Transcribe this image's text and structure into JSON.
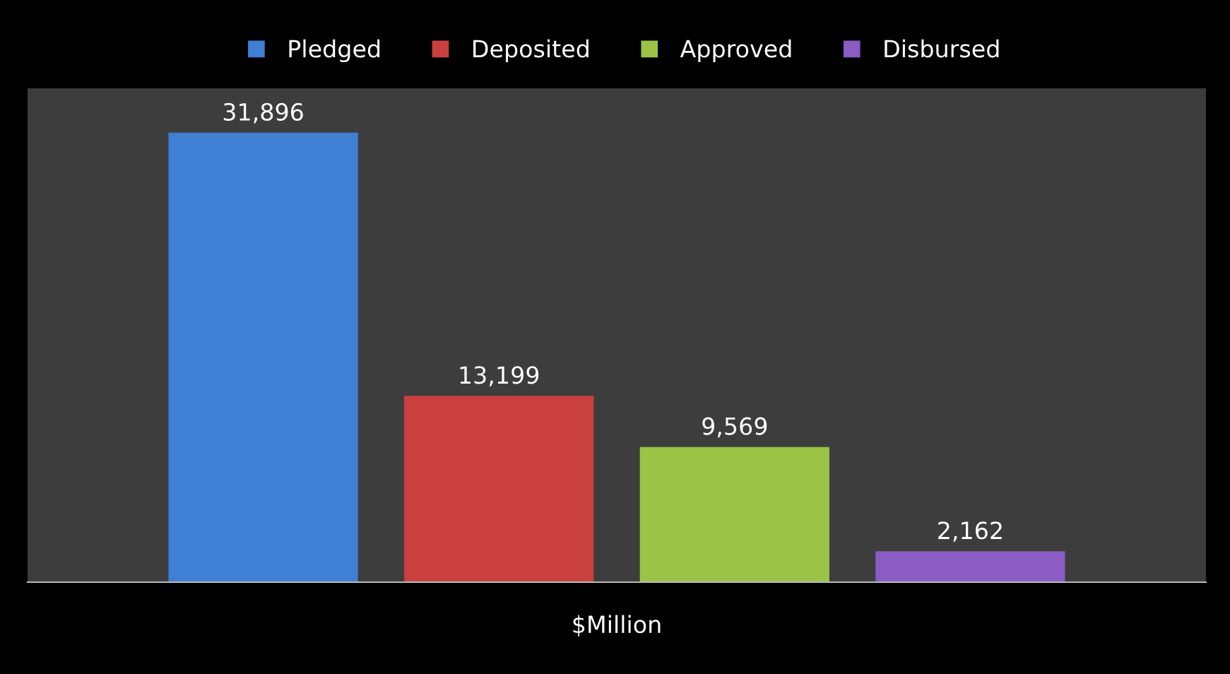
{
  "chart_data": {
    "type": "bar",
    "xlabel": "$Million",
    "categories": [
      null
    ],
    "series": [
      {
        "name": "Pledged",
        "color": "#3f7fd4",
        "values": [
          31896
        ],
        "value_labels": [
          "31,896"
        ]
      },
      {
        "name": "Deposited",
        "color": "#c9403e",
        "values": [
          13199
        ],
        "value_labels": [
          "13,199"
        ]
      },
      {
        "name": "Approved",
        "color": "#9bc447",
        "values": [
          9569
        ],
        "value_labels": [
          "9,569"
        ]
      },
      {
        "name": "Disbursed",
        "color": "#8a5cc4",
        "values": [
          2162
        ],
        "value_labels": [
          "2,162"
        ]
      }
    ],
    "legend": "top",
    "grid": false
  }
}
